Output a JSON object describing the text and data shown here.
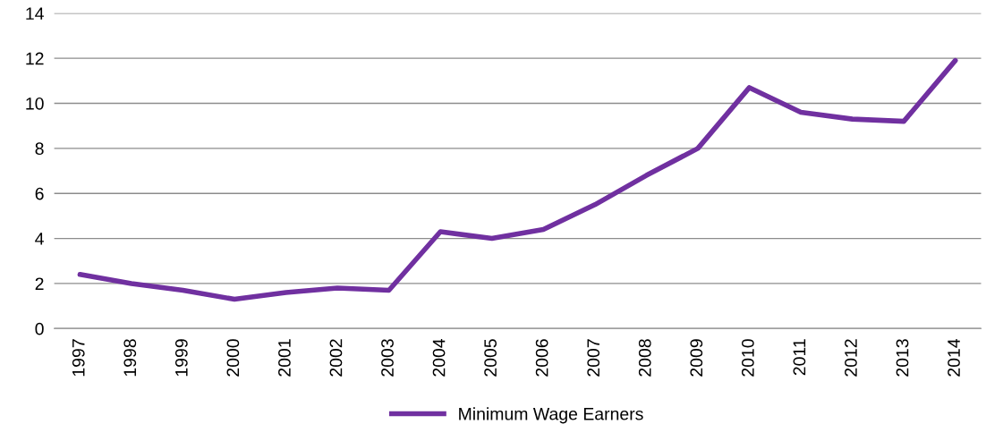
{
  "chart_data": {
    "type": "line",
    "categories": [
      "1997",
      "1998",
      "1999",
      "2000",
      "2001",
      "2002",
      "2003",
      "2004",
      "2005",
      "2006",
      "2007",
      "2008",
      "2009",
      "2010",
      "2011",
      "2012",
      "2013",
      "2014"
    ],
    "series": [
      {
        "name": "Minimum Wage Earners",
        "color": "#7030a0",
        "values": [
          2.4,
          2.0,
          1.7,
          1.3,
          1.6,
          1.8,
          1.7,
          4.3,
          4.0,
          4.4,
          5.5,
          6.8,
          8.0,
          10.7,
          9.6,
          9.3,
          9.2,
          11.9
        ]
      }
    ],
    "ylim": [
      0,
      14
    ],
    "yticks": [
      0,
      2,
      4,
      6,
      8,
      10,
      12,
      14
    ],
    "grid": "y",
    "legend": "bottom",
    "marker": "none",
    "line_style": "solid"
  }
}
